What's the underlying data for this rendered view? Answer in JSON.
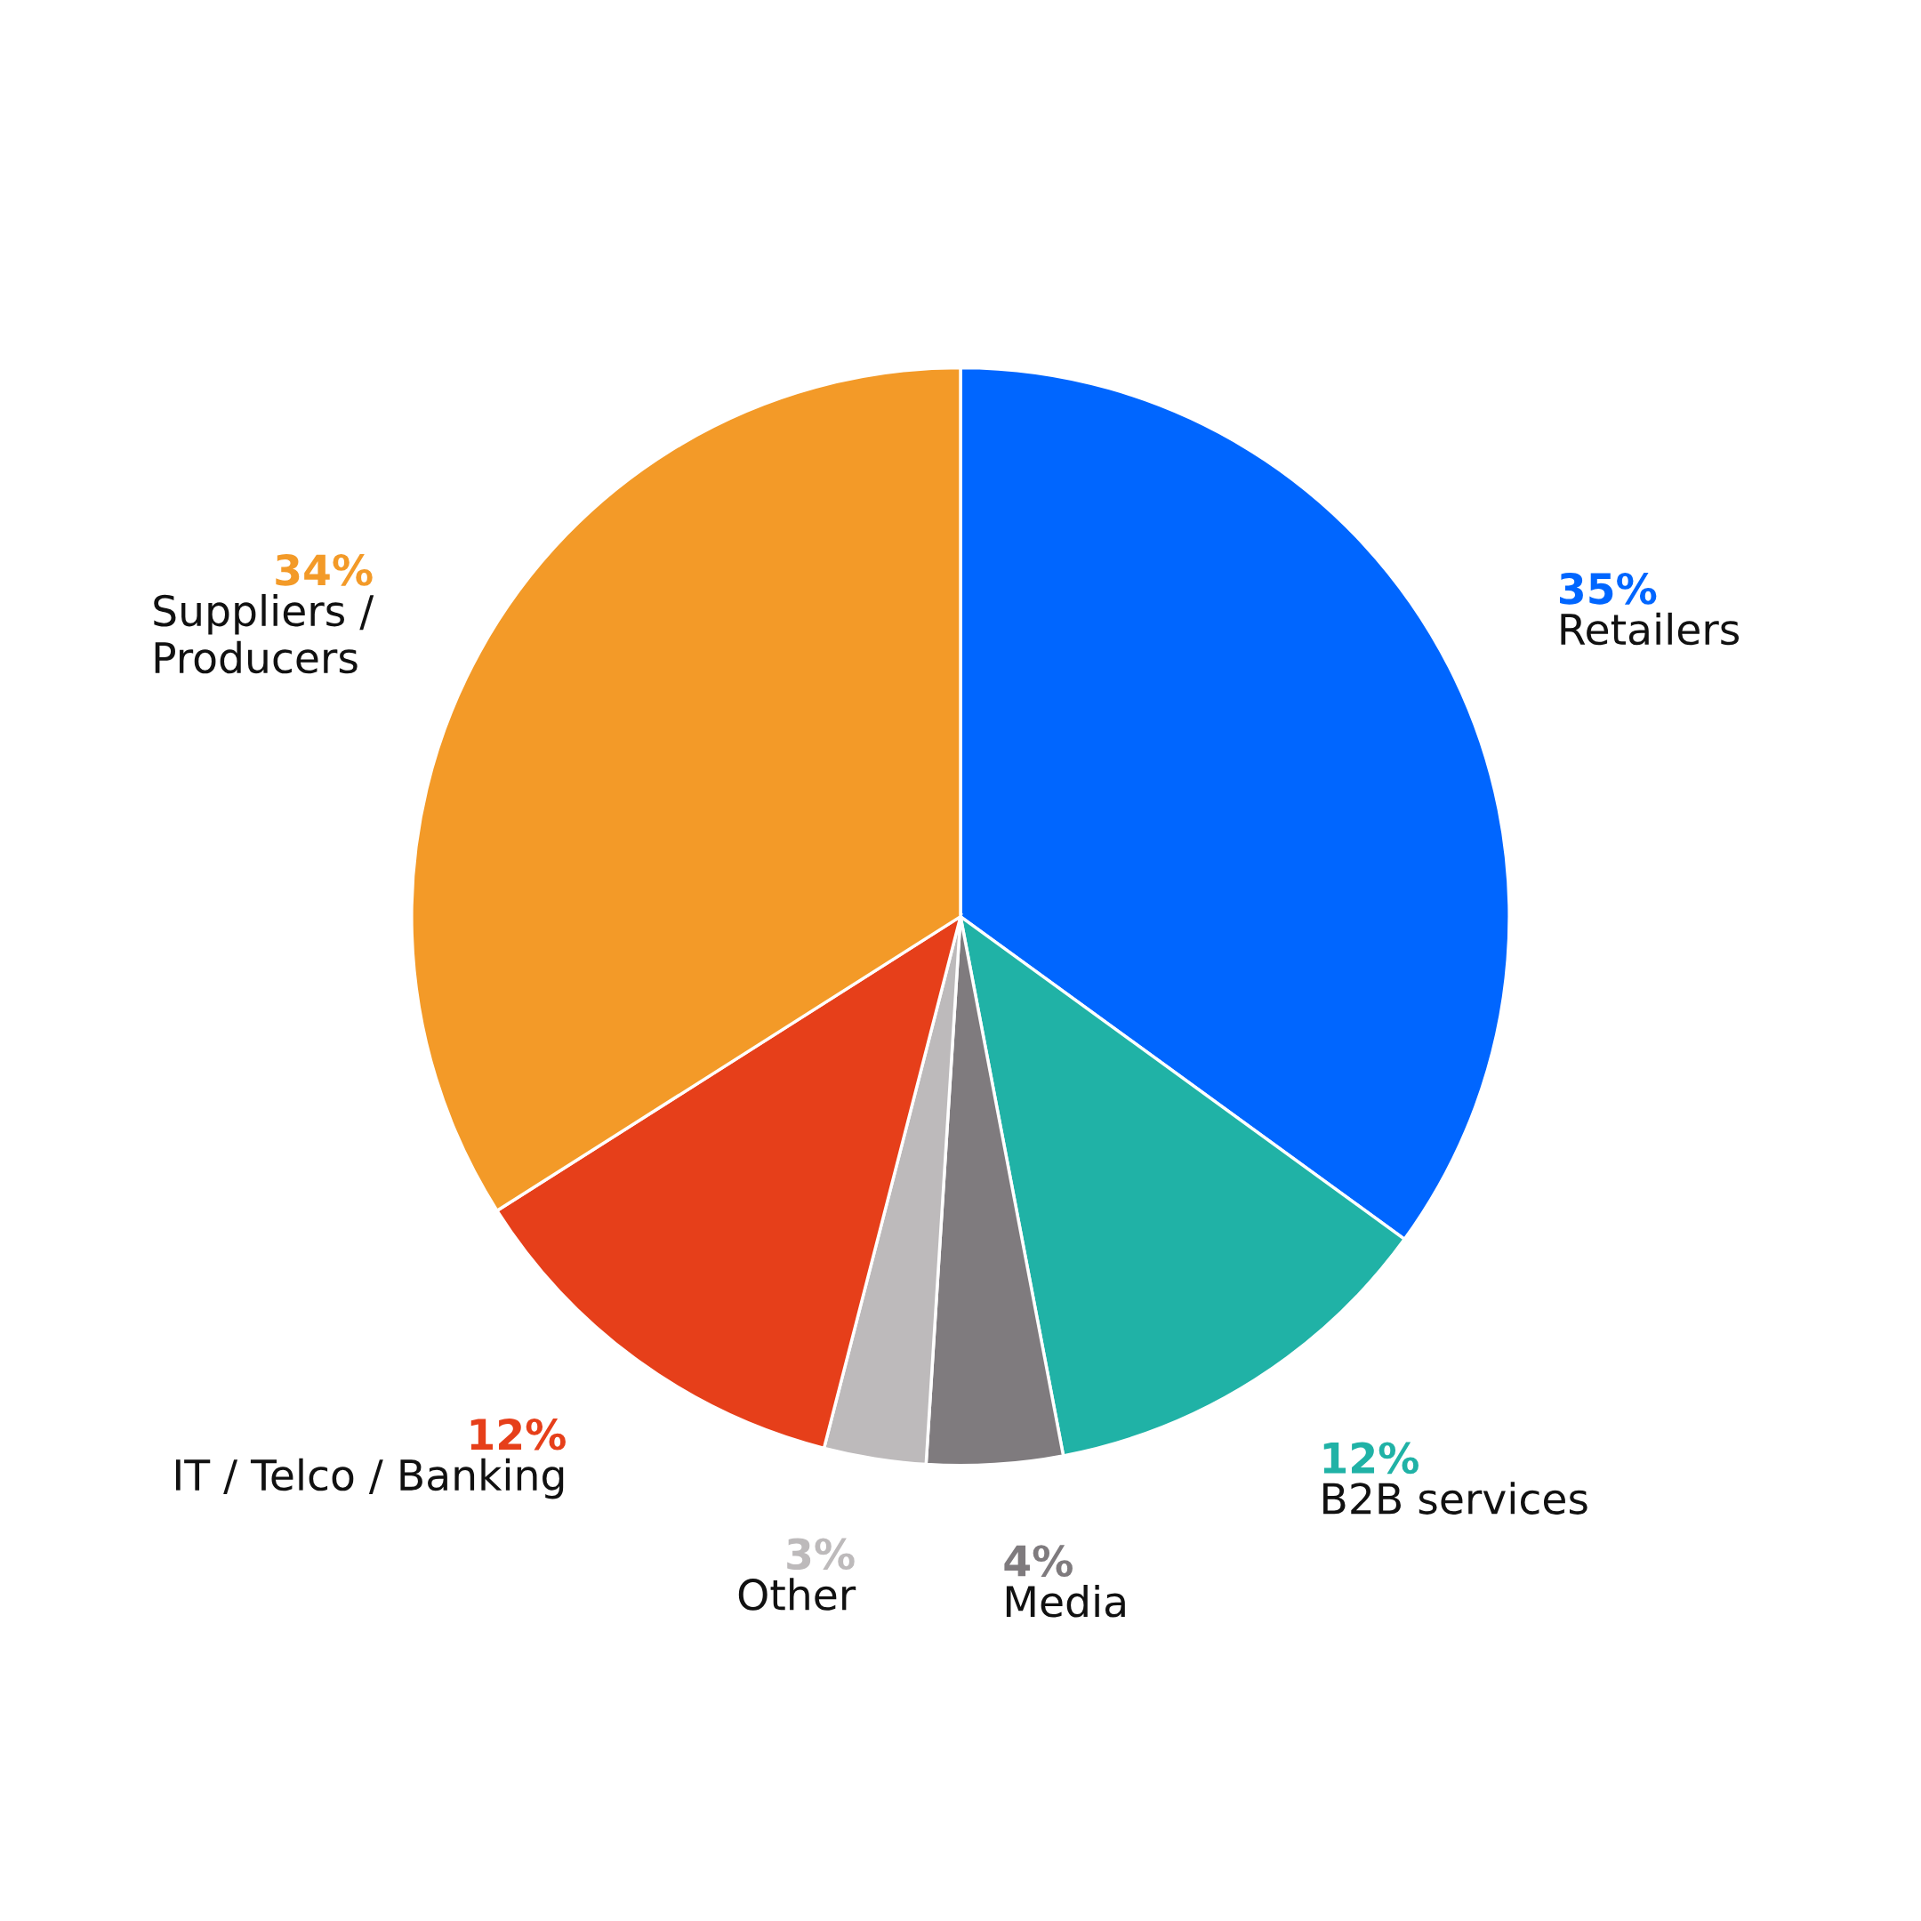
{
  "chart_data": {
    "type": "pie",
    "categories": [
      "Retailers",
      "B2B services",
      "Media",
      "Other",
      "IT / Telco / Banking",
      "Suppliers /\nProducers"
    ],
    "values": [
      35,
      12,
      4,
      3,
      12,
      34
    ],
    "value_labels": [
      "35%",
      "12%",
      "4%",
      "3%",
      "12%",
      "34%"
    ],
    "colors": [
      "#0066ff",
      "#20b2a6",
      "#7f7b7e",
      "#bdbabb",
      "#e63f1a",
      "#f39a28"
    ],
    "legend": false
  }
}
